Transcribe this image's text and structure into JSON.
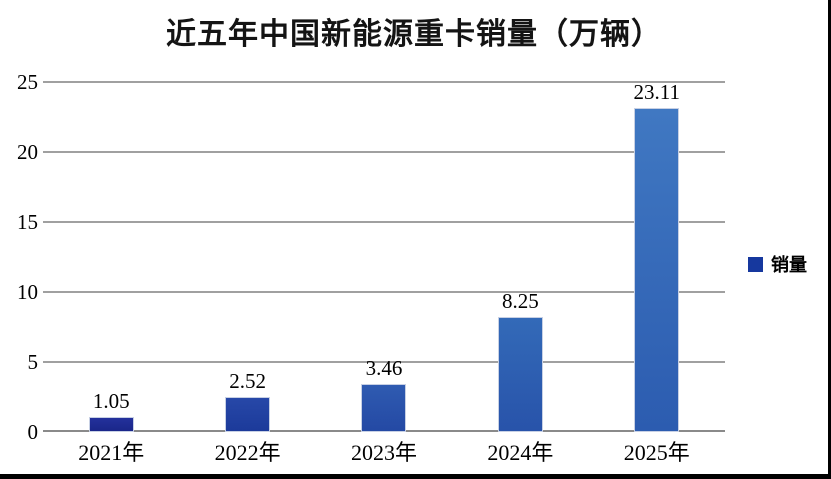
{
  "page": {
    "background": "#ffffff",
    "frame_border_color": "#000000"
  },
  "chart_data": {
    "type": "bar",
    "title": "近五年中国新能源重卡销量（万辆）",
    "categories": [
      "2021年",
      "2022年",
      "2023年",
      "2024年",
      "2025年"
    ],
    "values": [
      1.05,
      2.52,
      3.46,
      8.25,
      23.11
    ],
    "data_labels": [
      "1.05",
      "2.52",
      "3.46",
      "8.25",
      "23.11"
    ],
    "series_name": "销量",
    "xlabel": "",
    "ylabel": "",
    "ylim": [
      0,
      25
    ],
    "yticks": [
      0,
      5,
      10,
      15,
      20,
      25
    ],
    "grid": true,
    "legend_position": "right",
    "legend_swatch_color": "#16389e",
    "gridline_color": "#a0a0a0",
    "zero_line_color": "#8a8a8a",
    "bar_colors": [
      {
        "top": "#24319c",
        "bottom": "#1a2689"
      },
      {
        "top": "#2748a8",
        "bottom": "#1c3a9a"
      },
      {
        "top": "#2f5bb1",
        "bottom": "#2449a4"
      },
      {
        "top": "#336ab8",
        "bottom": "#2853aa"
      },
      {
        "top": "#4078c2",
        "bottom": "#2c5cb0"
      }
    ]
  }
}
